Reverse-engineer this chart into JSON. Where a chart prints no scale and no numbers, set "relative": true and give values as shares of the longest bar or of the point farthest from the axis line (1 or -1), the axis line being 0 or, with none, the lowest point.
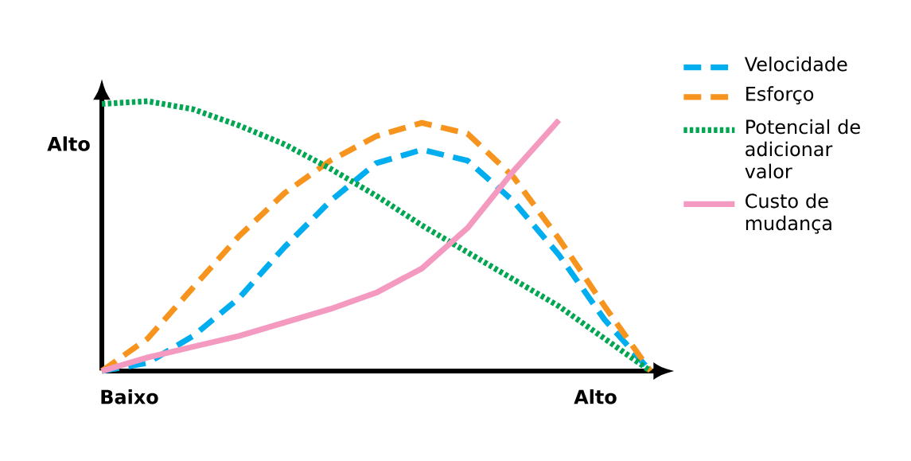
{
  "chart_data": {
    "type": "line",
    "relative": true,
    "ylabel": "Alto",
    "annotations": [
      "Baixo",
      "Alto"
    ],
    "categories": [
      null,
      null,
      null,
      null,
      null,
      null,
      null,
      null,
      null,
      null,
      null,
      null,
      null
    ],
    "legend": "top right",
    "series": [
      {
        "name": "Velocidade",
        "color": "#00aeef",
        "line_style": "dashed",
        "values": [
          0,
          0.03,
          0.13,
          0.27,
          0.46,
          0.63,
          0.77,
          0.82,
          0.78,
          0.63,
          0.43,
          0.19,
          0
        ]
      },
      {
        "name": "Esforço",
        "color": "#f7941d",
        "line_style": "dashed",
        "values": [
          0,
          0.12,
          0.31,
          0.5,
          0.66,
          0.78,
          0.87,
          0.92,
          0.88,
          0.72,
          0.49,
          0.24,
          0
        ]
      },
      {
        "name": "Potencial de adicionar valor",
        "color": "#00a651",
        "line_style": "dotted",
        "values": [
          0.99,
          1.0,
          0.97,
          0.91,
          0.84,
          0.75,
          0.65,
          0.54,
          0.44,
          0.34,
          0.24,
          0.12,
          0
        ]
      },
      {
        "name": "Custo de mudança",
        "color": "#f49ac1",
        "line_style": "solid",
        "values": [
          0,
          0.05,
          0.09,
          0.13,
          0.18,
          0.23,
          0.29,
          0.38,
          0.53,
          0.74,
          0.93,
          null,
          null
        ]
      }
    ]
  }
}
